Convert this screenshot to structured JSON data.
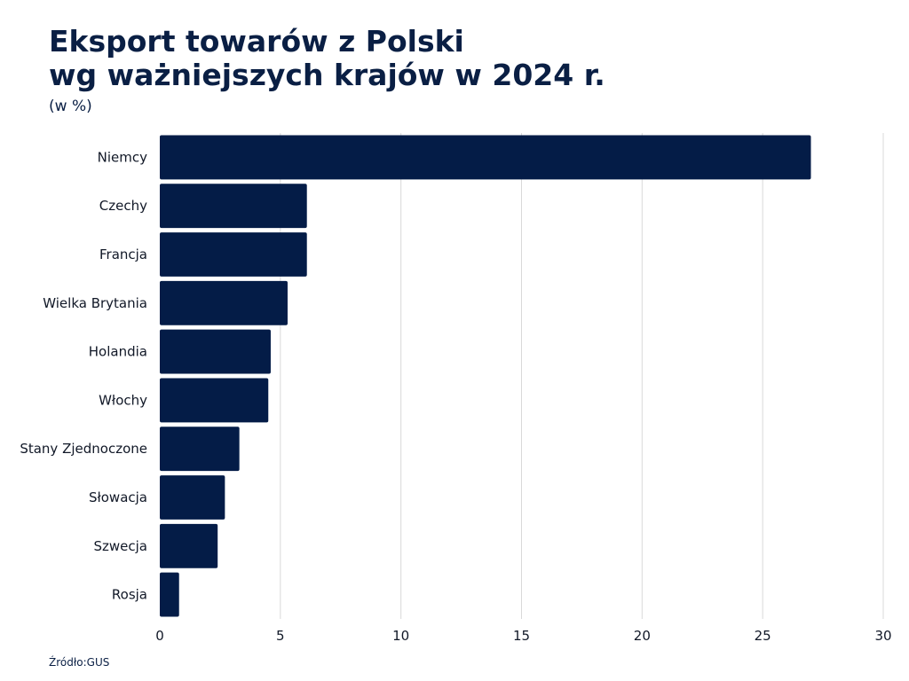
{
  "header": {
    "title_line1": "Eksport towarów z Polski",
    "title_line2": "wg ważniejszych krajów w 2024 r.",
    "subtitle": "(w %)"
  },
  "footer": {
    "source": "Źródło:GUS"
  },
  "colors": {
    "bar": "#041c47",
    "title": "#0a1f44",
    "grid": "#d9d9d9"
  },
  "chart_data": {
    "type": "bar",
    "orientation": "horizontal",
    "title": "Eksport towarów z Polski wg ważniejszych krajów w 2024 r.",
    "subtitle": "(w %)",
    "xlabel": "",
    "ylabel": "",
    "categories": [
      "Niemcy",
      "Czechy",
      "Francja",
      "Wielka Brytania",
      "Holandia",
      "Włochy",
      "Stany Zjednoczone",
      "Słowacja",
      "Szwecja",
      "Rosja"
    ],
    "values": [
      27.0,
      6.1,
      6.1,
      5.3,
      4.6,
      4.5,
      3.3,
      2.7,
      2.4,
      0.8
    ],
    "xlim": [
      0,
      30
    ],
    "xticks": [
      0,
      5,
      10,
      15,
      20,
      25,
      30
    ],
    "grid": "vertical",
    "legend": "none"
  }
}
